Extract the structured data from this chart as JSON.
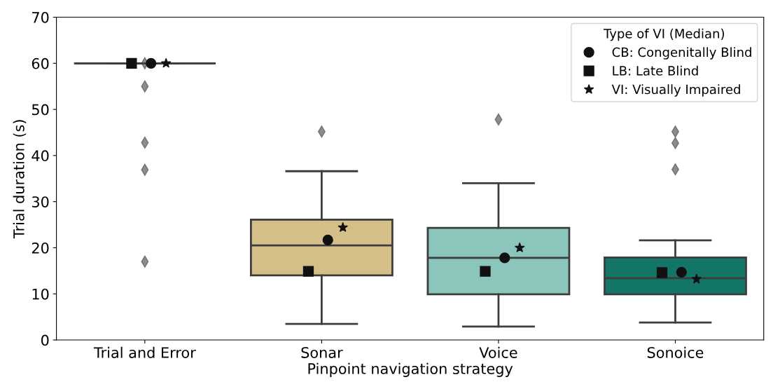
{
  "chart_data": {
    "type": "box",
    "xlabel": "Pinpoint navigation strategy",
    "ylabel": "Trial duration (s)",
    "categories": [
      "Trial and Error",
      "Sonar",
      "Voice",
      "Sonoice"
    ],
    "colors": [
      null,
      "#d4bf88",
      "#8cc5bb",
      "#137565"
    ],
    "boxes": [
      {
        "low": 60,
        "q1": 60,
        "median": 60,
        "q3": 60,
        "high": 60,
        "outliers": [
          60,
          55.0,
          42.8,
          36.9,
          17.0
        ]
      },
      {
        "low": 3.5,
        "q1": 14.0,
        "median": 20.5,
        "q3": 26.1,
        "high": 36.6,
        "outliers": [
          45.2
        ]
      },
      {
        "low": 2.9,
        "q1": 9.9,
        "median": 17.8,
        "q3": 24.3,
        "high": 34.0,
        "outliers": [
          47.8
        ]
      },
      {
        "low": 3.8,
        "q1": 9.9,
        "median": 13.4,
        "q3": 17.9,
        "high": 21.6,
        "outliers": [
          45.2,
          42.7,
          37.0
        ]
      }
    ],
    "series": [
      {
        "name": "CB: Congenitally Blind",
        "type": "scatter",
        "marker": "circle",
        "color": "#111111",
        "x": [
          "Trial and Error",
          "Sonar",
          "Voice",
          "Sonoice"
        ],
        "values": [
          60,
          21.7,
          17.8,
          14.7
        ]
      },
      {
        "name": "LB: Late Blind",
        "type": "scatter",
        "marker": "square",
        "color": "#111111",
        "x": [
          "Trial and Error",
          "Sonar",
          "Voice",
          "Sonoice"
        ],
        "values": [
          60,
          14.9,
          14.9,
          14.6
        ]
      },
      {
        "name": "VI: Visually Impaired",
        "type": "scatter",
        "marker": "star",
        "color": "#111111",
        "x": [
          "Trial and Error",
          "Sonar",
          "Voice",
          "Sonoice"
        ],
        "values": [
          60,
          24.4,
          20.0,
          13.2
        ]
      }
    ],
    "legend_title": "Type of VI (Median)",
    "legend": "top right",
    "ylim": [
      0,
      70
    ],
    "yticks": [
      0,
      10,
      20,
      30,
      40,
      50,
      60,
      70
    ],
    "grid": false
  }
}
